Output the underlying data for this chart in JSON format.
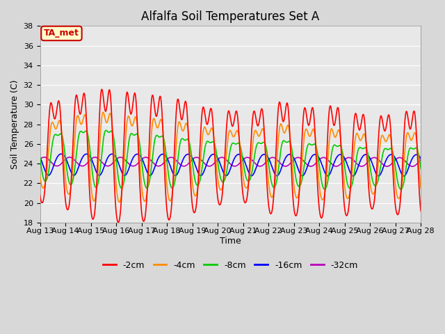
{
  "title": "Alfalfa Soil Temperatures Set A",
  "xlabel": "Time",
  "ylabel": "Soil Temperature (C)",
  "ylim": [
    18,
    38
  ],
  "x_tick_labels": [
    "Aug 13",
    "Aug 14",
    "Aug 15",
    "Aug 16",
    "Aug 17",
    "Aug 18",
    "Aug 19",
    "Aug 20",
    "Aug 21",
    "Aug 22",
    "Aug 23",
    "Aug 24",
    "Aug 25",
    "Aug 26",
    "Aug 27",
    "Aug 28"
  ],
  "series": {
    "-2cm": {
      "color": "#ff0000",
      "linewidth": 1.2
    },
    "-4cm": {
      "color": "#ff8c00",
      "linewidth": 1.2
    },
    "-8cm": {
      "color": "#00cc00",
      "linewidth": 1.2
    },
    "-16cm": {
      "color": "#0000ff",
      "linewidth": 1.2
    },
    "-32cm": {
      "color": "#bb00bb",
      "linewidth": 1.2
    }
  },
  "annotation_text": "TA_met",
  "annotation_color": "#cc0000",
  "annotation_bg": "#ffffcc",
  "fig_facecolor": "#d8d8d8",
  "plot_facecolor": "#e8e8e8",
  "grid_color": "#ffffff",
  "title_fontsize": 12,
  "tick_fontsize": 8,
  "label_fontsize": 9,
  "legend_fontsize": 9
}
